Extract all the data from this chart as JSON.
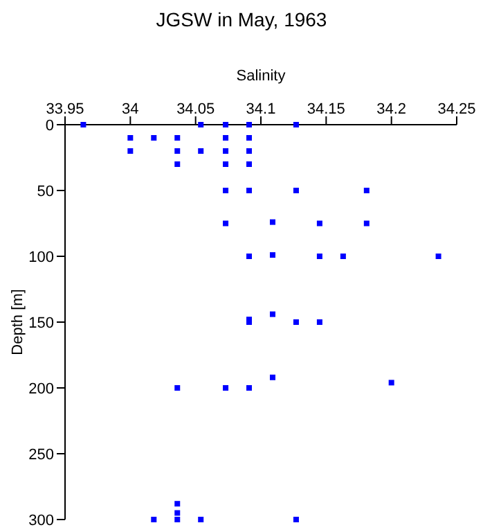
{
  "chart_data": {
    "type": "scatter",
    "title": "JGSW in May, 1963",
    "xlabel": "Salinity",
    "ylabel": "Depth [m]",
    "marker": "square",
    "xlim": [
      33.95,
      34.25
    ],
    "xticks": [
      33.95,
      34,
      34.05,
      34.1,
      34.15,
      34.2,
      34.25
    ],
    "ylim": [
      300,
      0
    ],
    "yticks": [
      0,
      50,
      100,
      150,
      200,
      250,
      300
    ],
    "series": [
      {
        "color": "#0000ff",
        "x": [
          33.964,
          34.054,
          34.073,
          34.091,
          34.127,
          34.0,
          34.018,
          34.036,
          34.073,
          34.091,
          34.0,
          34.036,
          34.054,
          34.073,
          34.091,
          34.036,
          34.073,
          34.091,
          34.073,
          34.091,
          34.127,
          34.181,
          34.073,
          34.109,
          34.145,
          34.181,
          34.091,
          34.109,
          34.145,
          34.163,
          34.236,
          34.091,
          34.091,
          34.109,
          34.127,
          34.145,
          34.036,
          34.073,
          34.091,
          34.109,
          34.2,
          34.018,
          34.036,
          34.054,
          34.127,
          34.036,
          34.036
        ],
        "values": [
          0,
          0,
          0,
          0,
          0,
          10,
          10,
          10,
          10,
          10,
          20,
          20,
          20,
          20,
          20,
          30,
          30,
          30,
          50,
          50,
          50,
          50,
          75,
          74,
          75,
          75,
          100,
          99,
          100,
          100,
          100,
          148,
          150,
          144,
          150,
          150,
          200,
          200,
          200,
          192,
          196,
          300,
          300,
          300,
          300,
          288,
          295
        ]
      }
    ]
  }
}
